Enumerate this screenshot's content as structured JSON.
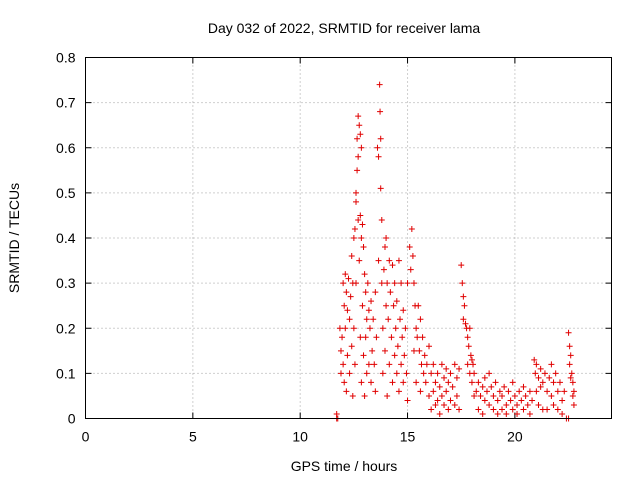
{
  "chart_data": {
    "type": "scatter",
    "title": "Day 032 of 2022, SRMTID for receiver lama",
    "xlabel": "GPS time / hours",
    "ylabel": "SRMTID / TECUs",
    "xlim": [
      0,
      24.5
    ],
    "ylim": [
      0,
      0.8
    ],
    "xticks": [
      0,
      5,
      10,
      15,
      20
    ],
    "xtick_labels": [
      "0",
      "5",
      "10",
      "15",
      "20"
    ],
    "yticks": [
      0,
      0.1,
      0.2,
      0.3,
      0.4,
      0.5,
      0.6,
      0.7,
      0.8
    ],
    "ytick_labels": [
      "0",
      "0.1",
      "0.2",
      "0.3",
      "0.4",
      "0.5",
      "0.6",
      "0.7",
      "0.8"
    ],
    "grid": true,
    "marker": "+",
    "color": "#e00000",
    "series": [
      {
        "name": "SRMTID",
        "points": [
          [
            11.7,
            0.0
          ],
          [
            11.7,
            0.01
          ],
          [
            11.75,
            0.0
          ],
          [
            11.85,
            0.2
          ],
          [
            11.9,
            0.15
          ],
          [
            11.9,
            0.1
          ],
          [
            11.95,
            0.18
          ],
          [
            12.0,
            0.3
          ],
          [
            12.0,
            0.12
          ],
          [
            12.05,
            0.25
          ],
          [
            12.05,
            0.08
          ],
          [
            12.1,
            0.32
          ],
          [
            12.1,
            0.2
          ],
          [
            12.15,
            0.28
          ],
          [
            12.15,
            0.06
          ],
          [
            12.2,
            0.24
          ],
          [
            12.2,
            0.14
          ],
          [
            12.25,
            0.31
          ],
          [
            12.3,
            0.22
          ],
          [
            12.3,
            0.1
          ],
          [
            12.35,
            0.27
          ],
          [
            12.4,
            0.36
          ],
          [
            12.4,
            0.16
          ],
          [
            12.45,
            0.3
          ],
          [
            12.45,
            0.05
          ],
          [
            12.5,
            0.4
          ],
          [
            12.5,
            0.2
          ],
          [
            12.55,
            0.42
          ],
          [
            12.55,
            0.12
          ],
          [
            12.6,
            0.5
          ],
          [
            12.6,
            0.48
          ],
          [
            12.6,
            0.3
          ],
          [
            12.65,
            0.62
          ],
          [
            12.65,
            0.55
          ],
          [
            12.7,
            0.67
          ],
          [
            12.7,
            0.58
          ],
          [
            12.7,
            0.44
          ],
          [
            12.75,
            0.65
          ],
          [
            12.75,
            0.35
          ],
          [
            12.8,
            0.63
          ],
          [
            12.8,
            0.45
          ],
          [
            12.8,
            0.18
          ],
          [
            12.85,
            0.6
          ],
          [
            12.85,
            0.4
          ],
          [
            12.85,
            0.08
          ],
          [
            12.9,
            0.43
          ],
          [
            12.9,
            0.25
          ],
          [
            12.95,
            0.38
          ],
          [
            12.95,
            0.14
          ],
          [
            13.0,
            0.32
          ],
          [
            13.0,
            0.05
          ],
          [
            13.05,
            0.28
          ],
          [
            13.05,
            0.18
          ],
          [
            13.1,
            0.22
          ],
          [
            13.1,
            0.1
          ],
          [
            13.15,
            0.3
          ],
          [
            13.2,
            0.24
          ],
          [
            13.2,
            0.12
          ],
          [
            13.25,
            0.2
          ],
          [
            13.3,
            0.26
          ],
          [
            13.3,
            0.08
          ],
          [
            13.35,
            0.15
          ],
          [
            13.4,
            0.22
          ],
          [
            13.45,
            0.12
          ],
          [
            13.5,
            0.28
          ],
          [
            13.5,
            0.06
          ],
          [
            13.55,
            0.18
          ],
          [
            13.6,
            0.6
          ],
          [
            13.65,
            0.58
          ],
          [
            13.65,
            0.35
          ],
          [
            13.7,
            0.74
          ],
          [
            13.72,
            0.68
          ],
          [
            13.75,
            0.62
          ],
          [
            13.75,
            0.51
          ],
          [
            13.8,
            0.44
          ],
          [
            13.8,
            0.3
          ],
          [
            13.85,
            0.2
          ],
          [
            13.85,
            0.1
          ],
          [
            13.9,
            0.33
          ],
          [
            13.95,
            0.38
          ],
          [
            13.95,
            0.15
          ],
          [
            14.0,
            0.4
          ],
          [
            14.0,
            0.25
          ],
          [
            14.05,
            0.3
          ],
          [
            14.05,
            0.05
          ],
          [
            14.1,
            0.22
          ],
          [
            14.15,
            0.35
          ],
          [
            14.15,
            0.12
          ],
          [
            14.2,
            0.28
          ],
          [
            14.25,
            0.18
          ],
          [
            14.3,
            0.34
          ],
          [
            14.3,
            0.08
          ],
          [
            14.35,
            0.25
          ],
          [
            14.4,
            0.3
          ],
          [
            14.4,
            0.14
          ],
          [
            14.45,
            0.2
          ],
          [
            14.5,
            0.26
          ],
          [
            14.5,
            0.1
          ],
          [
            14.55,
            0.16
          ],
          [
            14.6,
            0.35
          ],
          [
            14.6,
            0.06
          ],
          [
            14.65,
            0.22
          ],
          [
            14.7,
            0.3
          ],
          [
            14.7,
            0.12
          ],
          [
            14.75,
            0.18
          ],
          [
            14.8,
            0.24
          ],
          [
            14.8,
            0.08
          ],
          [
            14.85,
            0.14
          ],
          [
            14.9,
            0.2
          ],
          [
            14.95,
            0.1
          ],
          [
            15.0,
            0.3
          ],
          [
            15.0,
            0.04
          ],
          [
            15.1,
            0.38
          ],
          [
            15.15,
            0.33
          ],
          [
            15.2,
            0.42
          ],
          [
            15.25,
            0.36
          ],
          [
            15.3,
            0.3
          ],
          [
            15.3,
            0.15
          ],
          [
            15.35,
            0.25
          ],
          [
            15.4,
            0.2
          ],
          [
            15.4,
            0.08
          ],
          [
            15.45,
            0.18
          ],
          [
            15.5,
            0.25
          ],
          [
            15.55,
            0.15
          ],
          [
            15.6,
            0.22
          ],
          [
            15.6,
            0.06
          ],
          [
            15.65,
            0.12
          ],
          [
            15.7,
            0.18
          ],
          [
            15.75,
            0.1
          ],
          [
            15.8,
            0.14
          ],
          [
            15.85,
            0.08
          ],
          [
            15.9,
            0.12
          ],
          [
            16.0,
            0.16
          ],
          [
            16.0,
            0.05
          ],
          [
            16.1,
            0.1
          ],
          [
            16.1,
            0.02
          ],
          [
            16.2,
            0.12
          ],
          [
            16.2,
            0.06
          ],
          [
            16.3,
            0.08
          ],
          [
            16.3,
            0.03
          ],
          [
            16.4,
            0.1
          ],
          [
            16.4,
            0.04
          ],
          [
            16.5,
            0.07
          ],
          [
            16.5,
            0.01
          ],
          [
            16.6,
            0.12
          ],
          [
            16.6,
            0.05
          ],
          [
            16.7,
            0.09
          ],
          [
            16.7,
            0.03
          ],
          [
            16.8,
            0.11
          ],
          [
            16.8,
            0.06
          ],
          [
            16.9,
            0.08
          ],
          [
            16.9,
            0.02
          ],
          [
            17.0,
            0.1
          ],
          [
            17.0,
            0.04
          ],
          [
            17.1,
            0.07
          ],
          [
            17.2,
            0.12
          ],
          [
            17.2,
            0.03
          ],
          [
            17.3,
            0.09
          ],
          [
            17.3,
            0.05
          ],
          [
            17.4,
            0.11
          ],
          [
            17.4,
            0.02
          ],
          [
            17.5,
            0.34
          ],
          [
            17.55,
            0.3
          ],
          [
            17.6,
            0.27
          ],
          [
            17.6,
            0.22
          ],
          [
            17.65,
            0.25
          ],
          [
            17.7,
            0.21
          ],
          [
            17.75,
            0.2
          ],
          [
            17.8,
            0.18
          ],
          [
            17.8,
            0.12
          ],
          [
            17.85,
            0.16
          ],
          [
            17.9,
            0.2
          ],
          [
            17.9,
            0.1
          ],
          [
            17.95,
            0.14
          ],
          [
            18.0,
            0.13
          ],
          [
            18.0,
            0.08
          ],
          [
            18.05,
            0.12
          ],
          [
            18.1,
            0.1
          ],
          [
            18.1,
            0.05
          ],
          [
            18.2,
            0.06
          ],
          [
            18.3,
            0.08
          ],
          [
            18.3,
            0.02
          ],
          [
            18.4,
            0.05
          ],
          [
            18.5,
            0.07
          ],
          [
            18.5,
            0.01
          ],
          [
            18.6,
            0.09
          ],
          [
            18.6,
            0.04
          ],
          [
            18.7,
            0.06
          ],
          [
            18.8,
            0.1
          ],
          [
            18.8,
            0.03
          ],
          [
            18.9,
            0.07
          ],
          [
            19.0,
            0.05
          ],
          [
            19.0,
            0.02
          ],
          [
            19.1,
            0.08
          ],
          [
            19.2,
            0.04
          ],
          [
            19.2,
            0.01
          ],
          [
            19.3,
            0.06
          ],
          [
            19.4,
            0.05
          ],
          [
            19.4,
            0.02
          ],
          [
            19.5,
            0.07
          ],
          [
            19.6,
            0.03
          ],
          [
            19.6,
            0.01
          ],
          [
            19.7,
            0.06
          ],
          [
            19.8,
            0.04
          ],
          [
            19.9,
            0.08
          ],
          [
            19.9,
            0.02
          ],
          [
            20.0,
            0.05
          ],
          [
            20.1,
            0.03
          ],
          [
            20.1,
            0.01
          ],
          [
            20.2,
            0.06
          ],
          [
            20.3,
            0.04
          ],
          [
            20.4,
            0.07
          ],
          [
            20.4,
            0.02
          ],
          [
            20.5,
            0.05
          ],
          [
            20.6,
            0.03
          ],
          [
            20.7,
            0.06
          ],
          [
            20.7,
            0.01
          ],
          [
            20.8,
            0.04
          ],
          [
            20.9,
            0.13
          ],
          [
            20.95,
            0.1
          ],
          [
            21.0,
            0.12
          ],
          [
            21.0,
            0.06
          ],
          [
            21.1,
            0.09
          ],
          [
            21.1,
            0.03
          ],
          [
            21.2,
            0.11
          ],
          [
            21.2,
            0.07
          ],
          [
            21.3,
            0.08
          ],
          [
            21.3,
            0.02
          ],
          [
            21.4,
            0.1
          ],
          [
            21.5,
            0.06
          ],
          [
            21.5,
            0.02
          ],
          [
            21.6,
            0.09
          ],
          [
            21.7,
            0.12
          ],
          [
            21.7,
            0.05
          ],
          [
            21.8,
            0.08
          ],
          [
            21.8,
            0.03
          ],
          [
            21.9,
            0.1
          ],
          [
            22.0,
            0.06
          ],
          [
            22.0,
            0.02
          ],
          [
            22.1,
            0.08
          ],
          [
            22.2,
            0.04
          ],
          [
            22.2,
            0.01
          ],
          [
            22.3,
            0.06
          ],
          [
            22.4,
            0.0
          ],
          [
            22.5,
            0.0
          ],
          [
            22.5,
            0.19
          ],
          [
            22.55,
            0.16
          ],
          [
            22.55,
            0.12
          ],
          [
            22.6,
            0.14
          ],
          [
            22.6,
            0.09
          ],
          [
            22.65,
            0.1
          ],
          [
            22.7,
            0.08
          ],
          [
            22.7,
            0.05
          ],
          [
            22.75,
            0.06
          ],
          [
            22.75,
            0.03
          ]
        ]
      }
    ]
  }
}
